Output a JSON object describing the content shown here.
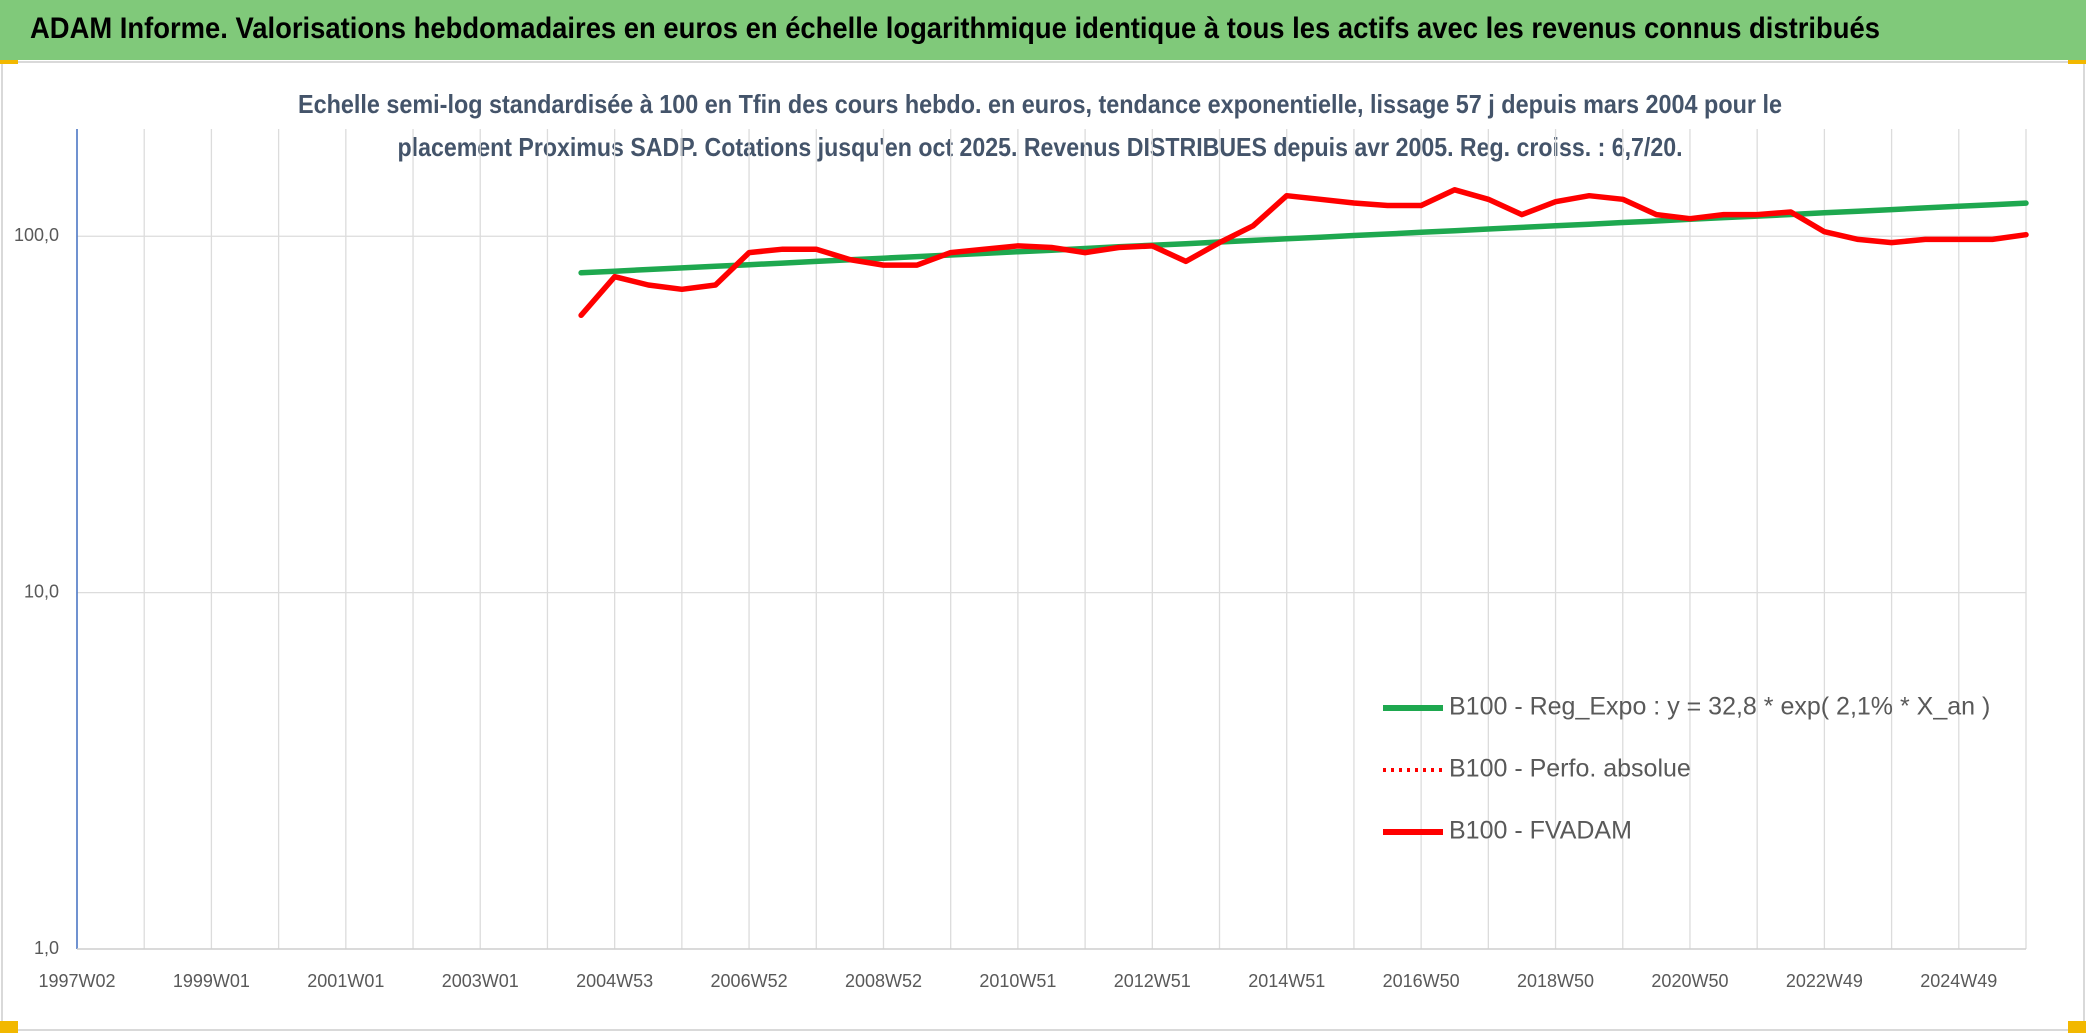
{
  "chart_data": {
    "type": "line",
    "title": "ADAM Informe. Valorisations hebdomadaires en euros en échelle logarithmique identique à tous les actifs avec les revenus connus distribués",
    "subtitle": [
      "Echelle semi-log standardisée à 100 en Tfin des cours hebdo. en euros, tendance exponentielle, lissage 57 j depuis mars 2004 pour le",
      "placement Proximus SADP. Cotations jusqu'en oct 2025. Revenus DISTRIBUES depuis avr 2005. Reg. croiss. : 6,7/20."
    ],
    "categories": [
      "1997W02",
      null,
      null,
      null,
      "1999W01",
      null,
      null,
      null,
      "2001W01",
      null,
      null,
      null,
      "2003W01",
      null,
      null,
      null,
      "2004W53",
      null,
      null,
      null,
      "2006W52",
      null,
      null,
      null,
      "2008W52",
      null,
      null,
      null,
      "2010W51",
      null,
      null,
      null,
      "2012W51",
      null,
      null,
      null,
      "2014W51",
      null,
      null,
      null,
      "2016W50",
      null,
      null,
      null,
      "2018W50",
      null,
      null,
      null,
      "2020W50",
      null,
      null,
      null,
      "2022W49",
      null,
      null,
      null,
      "2024W49",
      null,
      null
    ],
    "series": [
      {
        "name": "B100 - Reg_Expo : y = 32,8 * exp( 2,1% *  X_an )",
        "color": "#1ea84f",
        "style": "solid",
        "values": [
          null,
          null,
          null,
          null,
          null,
          null,
          null,
          null,
          null,
          null,
          null,
          null,
          null,
          null,
          null,
          79.0,
          79.8,
          80.7,
          81.5,
          82.4,
          83.2,
          84.1,
          85.0,
          85.9,
          86.8,
          87.7,
          88.6,
          89.5,
          90.5,
          91.4,
          92.4,
          93.4,
          94.4,
          95.3,
          96.4,
          97.4,
          98.4,
          99.4,
          100.5,
          101.5,
          102.6,
          103.7,
          104.8,
          105.9,
          107.0,
          108.1,
          109.3,
          110.4,
          111.6,
          112.8,
          113.9,
          115.1,
          116.4,
          117.6,
          118.8,
          120.1,
          121.4,
          122.6,
          123.9
        ]
      },
      {
        "name": "B100 - Perfo. absolue",
        "color": "#ff0000",
        "style": "dotted",
        "values": [
          null,
          null,
          null,
          null,
          null,
          null,
          null,
          null,
          null,
          null,
          null,
          null,
          null,
          null,
          null,
          60,
          77,
          73,
          71,
          73,
          90,
          92,
          92,
          86,
          83,
          83,
          90,
          92,
          94,
          93,
          90,
          93,
          94,
          85,
          96,
          107,
          130,
          127,
          124,
          122,
          122,
          135,
          127,
          115,
          125,
          130,
          127,
          115,
          112,
          115,
          115,
          117,
          103,
          98,
          96,
          98,
          98,
          98,
          101
        ]
      },
      {
        "name": "B100 - FVADAM",
        "color": "#ff0000",
        "style": "solid",
        "values": [
          null,
          null,
          null,
          null,
          null,
          null,
          null,
          null,
          null,
          null,
          null,
          null,
          null,
          null,
          null,
          60,
          77,
          73,
          71,
          73,
          90,
          92,
          92,
          86,
          83,
          83,
          90,
          92,
          94,
          93,
          90,
          93,
          94,
          85,
          96,
          107,
          130,
          127,
          124,
          122,
          122,
          135,
          127,
          115,
          125,
          130,
          127,
          115,
          112,
          115,
          115,
          117,
          103,
          98,
          96,
          98,
          98,
          98,
          101
        ]
      }
    ],
    "log_y": true,
    "ylim": [
      1,
      200
    ],
    "yticks": [
      {
        "value": 1,
        "label": "1,0"
      },
      {
        "value": 10,
        "label": "10,0"
      },
      {
        "value": 100,
        "label": "100,0"
      }
    ],
    "grid": true,
    "legend": "lower right"
  }
}
